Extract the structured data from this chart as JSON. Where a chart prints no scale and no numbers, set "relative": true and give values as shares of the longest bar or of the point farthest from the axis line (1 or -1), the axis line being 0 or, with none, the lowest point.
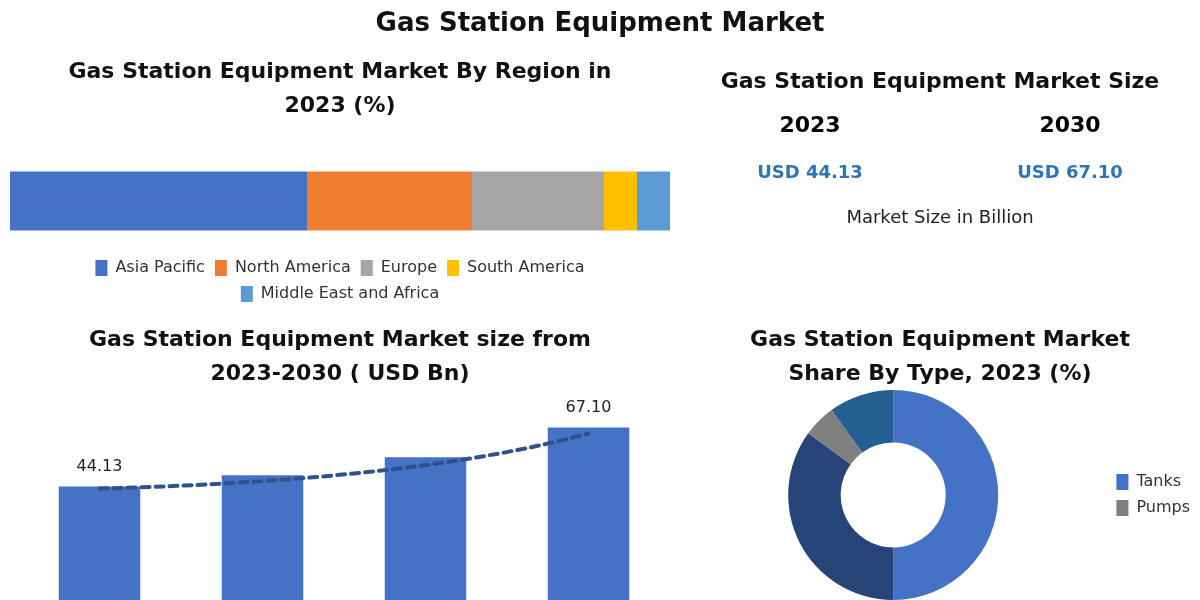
{
  "chart_data": [
    {
      "type": "other",
      "title": "Gas Station Equipment Market"
    },
    {
      "type": "bar",
      "title": "Gas Station Equipment Market By Region in 2023 (%)",
      "orientation": "horizontal",
      "stacked": true,
      "relative": true,
      "categories": [
        null
      ],
      "legend": "bottom",
      "series": [
        {
          "name": "Asia Pacific",
          "color": "#4472c4",
          "values": [
            0.45
          ]
        },
        {
          "name": "North America",
          "color": "#ed7d31",
          "values": [
            0.25
          ]
        },
        {
          "name": "Europe",
          "color": "#a5a5a5",
          "values": [
            0.2
          ]
        },
        {
          "name": "South America",
          "color": "#ffc000",
          "values": [
            0.05
          ]
        },
        {
          "name": "Middle East and Africa",
          "color": "#5b9bd5",
          "values": [
            0.05
          ]
        }
      ]
    },
    {
      "type": "other",
      "title": "Gas Station Equipment Market Size",
      "annotations": [
        "2023",
        "2030",
        "USD 44.13",
        "USD 67.10",
        "Market Size in Billion"
      ]
    },
    {
      "type": "bar",
      "title": "Gas Station Equipment Market size from 2023-2030 ( USD Bn)",
      "categories": [
        null,
        null,
        null,
        null
      ],
      "tick_labels": false,
      "series": [
        {
          "color": "#4472c4",
          "values": [
            44.13,
            48.5,
            55.5,
            67.1
          ],
          "value_labels": [
            "44.13",
            null,
            null,
            "67.10"
          ]
        }
      ]
    },
    {
      "type": "donut",
      "title": "Gas Station Equipment Market Share By Type, 2023 (%)",
      "categories": [
        "Tanks",
        null,
        "Pumps",
        null
      ],
      "values": [
        50,
        35,
        5,
        10
      ],
      "colors": [
        "#4472c4",
        "#264478",
        "#7f7f7f",
        "#255e91"
      ],
      "legend": "right"
    }
  ]
}
